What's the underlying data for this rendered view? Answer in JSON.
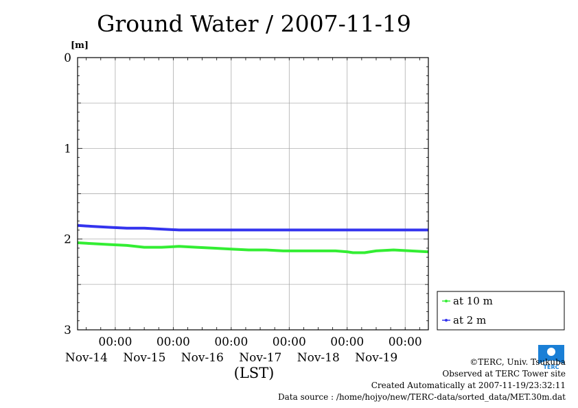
{
  "chart_data": {
    "type": "line",
    "title": "Ground Water / 2007-11-19",
    "ylabel": "[m]",
    "xlabel": "(LST)",
    "ylim": [
      0,
      3
    ],
    "y_inverted": true,
    "yticks": [
      "0",
      "1",
      "2",
      "3"
    ],
    "xlim_days": [
      13.35,
      19.4
    ],
    "xtick_labels": [
      {
        "time": "00:00",
        "date": "Nov-14",
        "day": 14
      },
      {
        "time": "00:00",
        "date": "Nov-15",
        "day": 15
      },
      {
        "time": "00:00",
        "date": "Nov-16",
        "day": 16
      },
      {
        "time": "00:00",
        "date": "Nov-17",
        "day": 17
      },
      {
        "time": "00:00",
        "date": "Nov-18",
        "day": 18
      },
      {
        "time": "00:00",
        "date": "Nov-19",
        "day": 19
      }
    ],
    "grid": true,
    "legend_position": "right",
    "series": [
      {
        "name": "at 10 m",
        "color": "#33ee33",
        "x": [
          13.35,
          13.6,
          13.9,
          14.2,
          14.5,
          14.8,
          15.1,
          15.4,
          15.7,
          16.0,
          16.3,
          16.6,
          16.9,
          17.2,
          17.5,
          17.8,
          18.0,
          18.1,
          18.3,
          18.5,
          18.8,
          19.1,
          19.4
        ],
        "y": [
          2.04,
          2.05,
          2.06,
          2.07,
          2.09,
          2.09,
          2.08,
          2.09,
          2.1,
          2.11,
          2.12,
          2.12,
          2.13,
          2.13,
          2.13,
          2.13,
          2.14,
          2.15,
          2.15,
          2.13,
          2.12,
          2.13,
          2.14
        ]
      },
      {
        "name": "at 2 m",
        "color": "#3333ee",
        "x": [
          13.35,
          13.6,
          13.9,
          14.2,
          14.5,
          14.8,
          15.1,
          15.4,
          15.7,
          16.0,
          16.3,
          16.6,
          16.9,
          17.2,
          17.5,
          17.8,
          18.1,
          18.4,
          18.7,
          19.0,
          19.4
        ],
        "y": [
          1.85,
          1.86,
          1.87,
          1.88,
          1.88,
          1.89,
          1.9,
          1.9,
          1.9,
          1.9,
          1.9,
          1.9,
          1.9,
          1.9,
          1.9,
          1.9,
          1.9,
          1.9,
          1.9,
          1.9,
          1.9
        ]
      }
    ]
  },
  "footer": {
    "credit": "©TERC, Univ. Tsukuba",
    "observed": "Observed at TERC Tower site",
    "created": "Created Automatically at 2007-11-19/23:32:11",
    "source": "Data source : /home/hojyo/new/TERC-data/sorted_data/MET.30m.dat"
  },
  "logo": {
    "text": "TERC",
    "color": "#1a7fd6"
  }
}
